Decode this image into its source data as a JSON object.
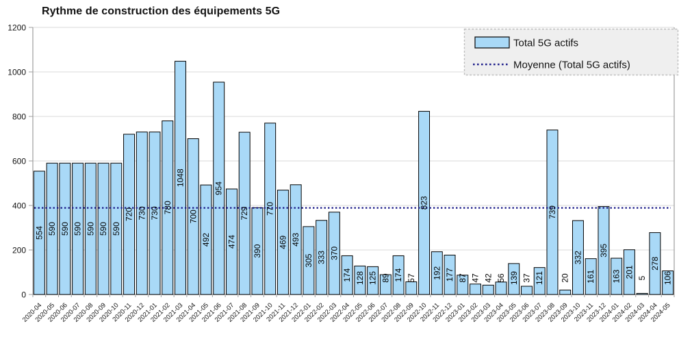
{
  "chart_data": {
    "type": "bar",
    "title": "Rythme de construction des équipements 5G",
    "xlabel": "",
    "ylabel": "",
    "ylim": [
      0,
      1200
    ],
    "yticks": [
      0,
      200,
      400,
      600,
      800,
      1000,
      1200
    ],
    "grid": "horizontal",
    "legend_position": "top-right",
    "categories": [
      "2020-04",
      "2020-05",
      "2020-06",
      "2020-07",
      "2020-08",
      "2020-09",
      "2020-10",
      "2020-11",
      "2020-12",
      "2021-01",
      "2021-02",
      "2021-03",
      "2021-04",
      "2021-05",
      "2021-06",
      "2021-07",
      "2021-08",
      "2021-09",
      "2021-10",
      "2021-11",
      "2021-12",
      "2022-01",
      "2022-02",
      "2022-03",
      "2022-04",
      "2022-05",
      "2022-06",
      "2022-07",
      "2022-08",
      "2022-09",
      "2022-10",
      "2022-11",
      "2022-12",
      "2023-01",
      "2023-02",
      "2023-03",
      "2023-04",
      "2023-05",
      "2023-06",
      "2023-07",
      "2023-08",
      "2023-09",
      "2023-10",
      "2023-11",
      "2023-12",
      "2024-01",
      "2024-02",
      "2024-03",
      "2024-04",
      "2024-05"
    ],
    "series": [
      {
        "name": "Total 5G actifs",
        "values": [
          554,
          590,
          590,
          590,
          590,
          590,
          590,
          720,
          730,
          730,
          780,
          1048,
          700,
          492,
          954,
          474,
          729,
          390,
          770,
          469,
          493,
          305,
          333,
          370,
          174,
          128,
          125,
          89,
          174,
          57,
          823,
          192,
          177,
          87,
          47,
          42,
          56,
          139,
          37,
          121,
          739,
          20,
          332,
          161,
          395,
          163,
          201,
          5,
          278,
          106
        ]
      }
    ],
    "mean_line": {
      "label": "Moyenne (Total 5G actifs)",
      "value": 389
    },
    "colors": {
      "bar_fill": "#A9D9F7",
      "bar_stroke": "#000000",
      "mean_line": "#21218C",
      "grid": "#D9D9D9",
      "axis": "#9E9E9E",
      "legend_bg": "#EFEFEF",
      "legend_border": "#BDBDBD",
      "text": "#111111"
    }
  },
  "legend": {
    "items": [
      {
        "label": "Total 5G actifs"
      },
      {
        "label": "Moyenne (Total 5G actifs)"
      }
    ]
  }
}
